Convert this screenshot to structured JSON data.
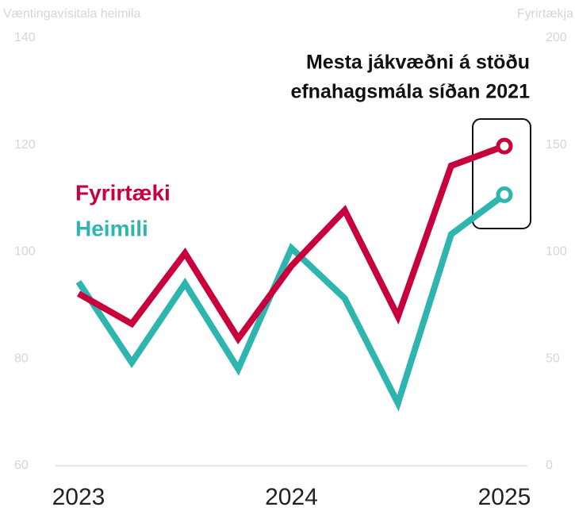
{
  "chart_data": {
    "type": "line",
    "ylabel": "Væntingavísitala heimila",
    "y2label": "Fyrirtækja",
    "annotation": [
      "Mesta jákvæðni á stöðu",
      "efnahagsmála síðan 2021"
    ],
    "categories": [
      "2023",
      null,
      null,
      null,
      "2024",
      null,
      null,
      null,
      "2025"
    ],
    "series": [
      {
        "name": "Heimili",
        "color": "#2fb5b0",
        "values": [
          94.4,
          79.3,
          94.1,
          78.1,
          100.7,
          91.3,
          71.7,
          103.3,
          110.7
        ]
      },
      {
        "name": "Fyrirtæki",
        "color": "#c8003c",
        "axis": "y2",
        "values": [
          80.5,
          66.4,
          99.4,
          59.4,
          93.5,
          119.5,
          69.8,
          140.3,
          149.5
        ]
      }
    ],
    "ylim": [
      60,
      140
    ],
    "yticks": [
      60,
      80,
      100,
      120,
      140
    ],
    "y2lim": [
      0,
      200
    ],
    "y2ticks": [
      0,
      50,
      100,
      150,
      200
    ]
  }
}
